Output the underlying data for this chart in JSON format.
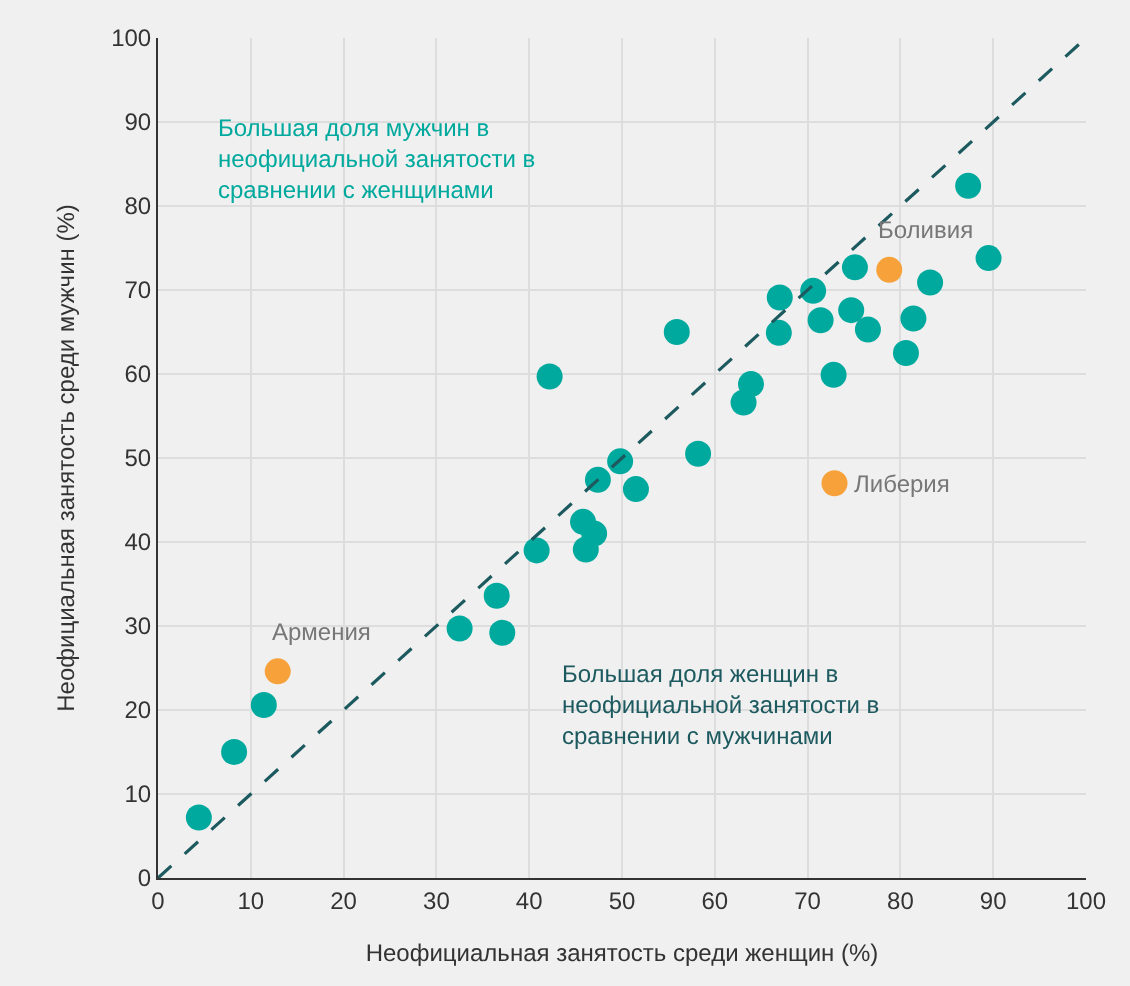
{
  "chart_data": {
    "type": "scatter",
    "xlabel": "Неофициальная занятость среди женщин (%)",
    "ylabel": "Неофициальная занятость среди мужчин (%)",
    "xlim": [
      0,
      100
    ],
    "ylim": [
      0,
      100
    ],
    "xticks": [
      0,
      10,
      20,
      30,
      40,
      50,
      60,
      70,
      80,
      90,
      100
    ],
    "yticks": [
      0,
      10,
      20,
      30,
      40,
      50,
      60,
      70,
      80,
      90,
      100
    ],
    "grid": true,
    "marker": "circle",
    "series": [
      {
        "color": "#00a99d",
        "x": [
          4.4,
          8.2,
          11.4,
          32.5,
          36.5,
          37.1,
          40.8,
          45.8,
          47.0,
          46.1,
          47.4,
          49.8,
          51.5,
          58.2,
          42.2,
          55.9,
          63.9,
          63.1,
          66.9,
          87.3,
          89.5,
          75.1,
          83.2,
          67.0,
          70.6,
          74.7,
          71.4,
          76.5,
          81.4,
          80.6,
          72.8
        ],
        "values": [
          7.2,
          15.0,
          20.6,
          29.7,
          33.6,
          29.2,
          39.0,
          42.4,
          41.0,
          39.1,
          47.4,
          49.6,
          46.3,
          50.5,
          59.7,
          65.0,
          58.8,
          56.6,
          64.9,
          82.4,
          73.8,
          72.7,
          70.9,
          69.1,
          69.9,
          67.6,
          66.4,
          65.3,
          66.6,
          62.5,
          59.9
        ]
      },
      {
        "color": "#f7a13a",
        "x": [
          12.9,
          78.8,
          72.9
        ],
        "values": [
          24.6,
          72.4,
          47.0
        ]
      },
      {
        "type": "line",
        "color": "#1d5a5f",
        "line_style": "dashed",
        "marker": "none",
        "x": [
          0,
          100
        ],
        "values": [
          0,
          100
        ]
      }
    ],
    "annotations": [
      {
        "text": "Армения",
        "x": 12.9,
        "y": 24.6
      },
      {
        "text": "Боливия",
        "x": 78.8,
        "y": 72.4
      },
      {
        "text": "Либерия",
        "x": 72.9,
        "y": 47.0
      },
      "Большая доля мужчин в\nнеофициальной занятости в\nсравнении с женщинами",
      "Большая доля женщин в\nнеофициальной занятости в\nсравнении с мужчинами"
    ]
  }
}
